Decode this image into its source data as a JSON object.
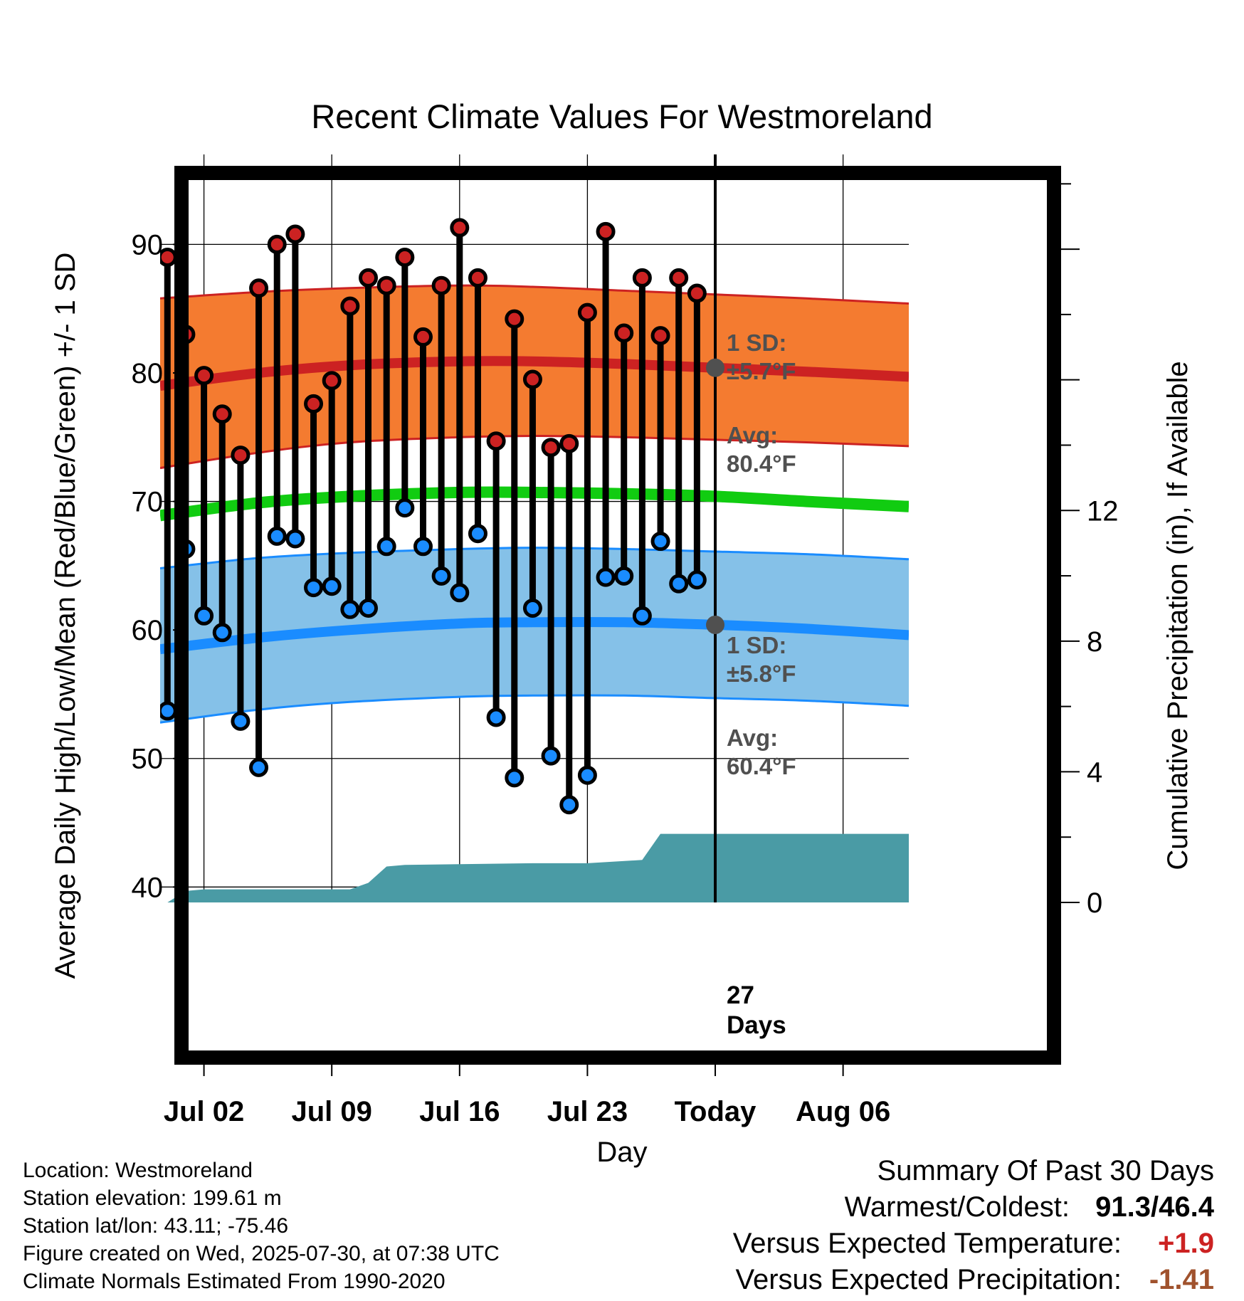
{
  "chart_data": {
    "type": "line",
    "title": "Recent Climate Values For Westmoreland",
    "xlabel": "Day",
    "ylabel": "Average Daily High/Low/Mean (Red/Blue/Green) +/- 1 SD",
    "y2label": "Cumulative Precipitation (in), If Available",
    "ylim": [
      38.8,
      97.0
    ],
    "y2lim": [
      0,
      22.9
    ],
    "xlim": [
      -0.4,
      40.6
    ],
    "yticks": [
      40,
      50,
      60,
      70,
      80,
      90
    ],
    "y2ticks": [
      0,
      4,
      8,
      12
    ],
    "xticks": [
      {
        "x": 2,
        "label": "Jul 02"
      },
      {
        "x": 9,
        "label": "Jul 09"
      },
      {
        "x": 16,
        "label": "Jul 16"
      },
      {
        "x": 23,
        "label": "Jul 23"
      },
      {
        "x": 30,
        "label": "Today"
      },
      {
        "x": 37,
        "label": "Aug 06"
      }
    ],
    "today_x": 30,
    "days": [
      0,
      1,
      2,
      3,
      4,
      5,
      6,
      7,
      8,
      9,
      10,
      11,
      12,
      13,
      14,
      15,
      16,
      17,
      18,
      19,
      20,
      21,
      22,
      23,
      24,
      25,
      26,
      27,
      28,
      29
    ],
    "highs": [
      89.0,
      83.0,
      79.8,
      76.8,
      73.6,
      86.6,
      90.0,
      90.8,
      77.6,
      79.4,
      85.2,
      87.4,
      86.8,
      89.0,
      82.8,
      86.8,
      91.3,
      87.4,
      74.7,
      84.2,
      79.5,
      74.2,
      74.5,
      84.7,
      91.0,
      83.1,
      87.4,
      82.9,
      87.4,
      86.2
    ],
    "lows": [
      53.7,
      66.3,
      61.1,
      59.8,
      52.9,
      49.3,
      67.3,
      67.1,
      63.3,
      63.4,
      61.6,
      61.7,
      66.5,
      69.5,
      66.5,
      64.2,
      62.9,
      67.5,
      53.2,
      48.5,
      61.7,
      50.2,
      46.4,
      48.7,
      64.1,
      64.2,
      61.1,
      66.9,
      63.6,
      63.9
    ],
    "normals": {
      "x": [
        -0.4,
        5,
        10,
        16,
        20,
        25,
        30,
        35,
        40.6
      ],
      "high_mean": [
        79.0,
        80.0,
        80.6,
        80.9,
        80.9,
        80.7,
        80.4,
        80.1,
        79.7
      ],
      "high_upper": [
        85.8,
        86.3,
        86.6,
        86.8,
        86.7,
        86.4,
        86.1,
        85.8,
        85.4
      ],
      "high_lower": [
        72.6,
        73.8,
        74.6,
        75.0,
        75.1,
        75.0,
        74.8,
        74.6,
        74.3
      ],
      "mean": [
        68.9,
        69.9,
        70.4,
        70.7,
        70.7,
        70.6,
        70.4,
        70.0,
        69.6
      ],
      "low_mean": [
        58.5,
        59.4,
        60.0,
        60.5,
        60.6,
        60.6,
        60.4,
        60.1,
        59.6
      ],
      "low_upper": [
        64.8,
        65.6,
        66.0,
        66.3,
        66.4,
        66.3,
        66.1,
        65.9,
        65.5
      ],
      "low_lower": [
        52.8,
        53.8,
        54.4,
        54.8,
        54.9,
        54.9,
        54.7,
        54.5,
        54.1
      ]
    },
    "precip": {
      "x": [
        0,
        1,
        2,
        10,
        11,
        12,
        13,
        20,
        21,
        23,
        26,
        27,
        40.6
      ],
      "values": [
        0.0,
        0.35,
        0.4,
        0.4,
        0.6,
        1.1,
        1.15,
        1.2,
        1.2,
        1.2,
        1.3,
        2.1,
        2.1
      ]
    },
    "annotations": {
      "high_sd": "1 SD:",
      "high_sd_val": "±5.7°F",
      "high_avg": "Avg:",
      "high_avg_val": "80.4°F",
      "high_avg_today": 80.4,
      "low_sd": "1 SD:",
      "low_sd_val": "±5.8°F",
      "low_avg": "Avg:",
      "low_avg_val": "60.4°F",
      "low_avg_today": 60.4,
      "days_count": "27",
      "days_label": "Days"
    },
    "colors": {
      "high_band": "#f47b30",
      "high_line": "#cc2222",
      "mean_line": "#11cc11",
      "low_band": "#85c1e8",
      "low_line": "#1a8cff",
      "precip": "#4a9ba5",
      "high_dot": "#cc2222",
      "low_dot": "#1a8cff",
      "annotation": "#505050"
    }
  },
  "footer": {
    "location": "Location: Westmoreland",
    "elevation": "Station elevation: 199.61 m",
    "latlon": "Station lat/lon: 43.11; -75.46",
    "created": "Figure created on Wed, 2025-07-30, at 07:38 UTC",
    "normals": "Climate Normals Estimated From 1990-2020"
  },
  "summary": {
    "title": "Summary Of Past 30 Days",
    "warm_cold_label": "Warmest/Coldest:",
    "warm_cold_value": "91.3/46.4",
    "temp_label": "Versus Expected Temperature:",
    "temp_value": "+1.9",
    "temp_color": "#cc2222",
    "precip_label": "Versus Expected Precipitation:",
    "precip_value": "-1.41",
    "precip_color": "#a0522d"
  }
}
